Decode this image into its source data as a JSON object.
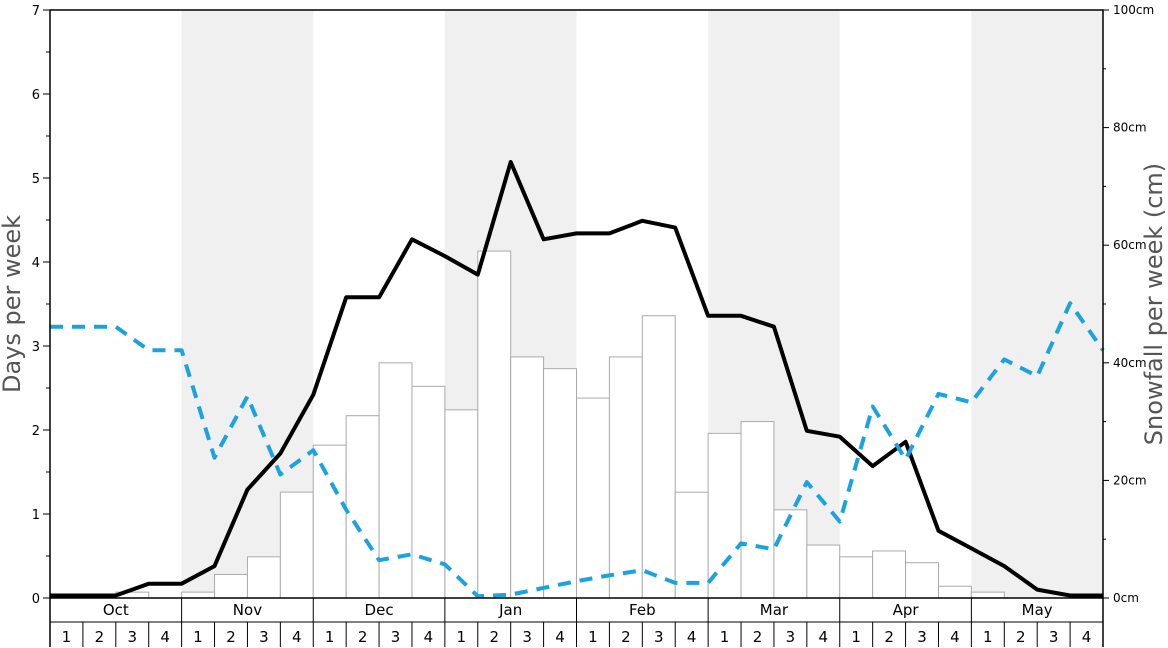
{
  "chart_data": {
    "type": "bar",
    "xlabel": "",
    "ylabel": "Days per week",
    "y2label": "Snowfall per week (cm)",
    "ylim": [
      0,
      7
    ],
    "y2lim": [
      0,
      100
    ],
    "yticks": [
      "0",
      "1",
      "2",
      "3",
      "4",
      "5",
      "6",
      "7"
    ],
    "y2ticks": [
      "0cm",
      "20cm",
      "40cm",
      "60cm",
      "80cm",
      "100cm"
    ],
    "grid": false,
    "legend": "none",
    "months": [
      "Oct",
      "Nov",
      "Dec",
      "Jan",
      "Feb",
      "Mar",
      "Apr",
      "May"
    ],
    "weeks": [
      "1",
      "2",
      "3",
      "4"
    ],
    "shaded_months": [
      "Nov",
      "Jan",
      "Mar",
      "May"
    ],
    "colors": {
      "shade": "#f0f0f0",
      "bar_fill": "#ffffff",
      "bar_stroke": "#aaaaaa",
      "days_line": "#000000",
      "dashed_line": "#1aa3e0"
    },
    "series": [
      {
        "type": "bar",
        "axis": "right",
        "unit": "cm",
        "values": [
          0,
          0,
          1,
          0,
          1,
          4,
          7,
          18,
          26,
          31,
          40,
          36,
          32,
          59,
          41,
          39,
          34,
          41,
          48,
          18,
          28,
          30,
          15,
          9,
          7,
          8,
          6,
          2,
          1,
          0,
          0,
          0
        ]
      },
      {
        "type": "line",
        "axis": "left",
        "style": "solid",
        "values": [
          0.03,
          0.03,
          0.03,
          0.17,
          0.17,
          0.38,
          1.29,
          1.72,
          2.42,
          3.58,
          3.58,
          4.27,
          4.07,
          3.85,
          5.19,
          4.27,
          4.34,
          4.34,
          4.49,
          4.41,
          3.36,
          3.36,
          3.23,
          1.99,
          1.92,
          1.57,
          1.86,
          0.8,
          0.59,
          0.38,
          0.1,
          0.03,
          0.03
        ]
      },
      {
        "type": "line",
        "axis": "left",
        "style": "dashed",
        "values": [
          3.23,
          3.23,
          3.23,
          2.95,
          2.95,
          1.67,
          2.4,
          1.47,
          1.76,
          1.05,
          0.45,
          0.52,
          0.4,
          0.02,
          0.04,
          0.12,
          0.2,
          0.27,
          0.33,
          0.18,
          0.18,
          0.65,
          0.58,
          1.38,
          0.91,
          2.28,
          1.65,
          2.43,
          2.33,
          2.84,
          2.64,
          3.51,
          2.95
        ]
      }
    ]
  }
}
